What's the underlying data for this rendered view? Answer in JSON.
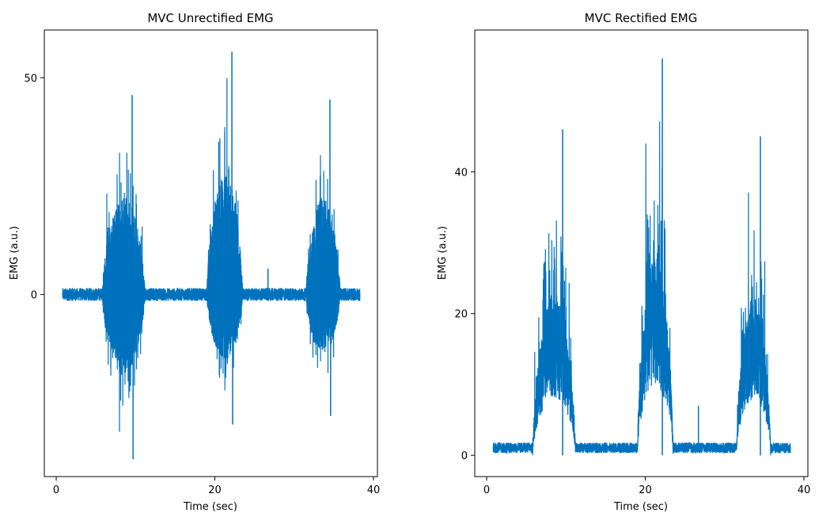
{
  "chart_data": [
    {
      "type": "line",
      "title": "MVC Unrectified EMG",
      "xlabel": "Time (sec)",
      "ylabel": "EMG (a.u.)",
      "xlim": [
        -1.5,
        40.5
      ],
      "ylim": [
        -42,
        61
      ],
      "xticks": [
        0,
        20,
        40
      ],
      "xtick_labels": [
        "0",
        "20",
        "40"
      ],
      "yticks": [
        0,
        50
      ],
      "ytick_labels": [
        "0",
        "50"
      ],
      "grid": false,
      "color": "#0072bd",
      "series": [
        {
          "name": "",
          "x_range": [
            0.8,
            38.3
          ],
          "baseline_amplitude": 1.5,
          "bursts": [
            {
              "start": 5.8,
              "end": 11.2,
              "max": 46,
              "min": -38
            },
            {
              "start": 19.0,
              "end": 23.5,
              "max": 56,
              "min": -30
            },
            {
              "start": 31.5,
              "end": 35.8,
              "max": 45,
              "min": -28
            }
          ],
          "spikes": [
            {
              "x": 26.7,
              "y": 6
            }
          ]
        }
      ]
    },
    {
      "type": "line",
      "title": "MVC Rectified EMG",
      "xlabel": "Time (sec)",
      "ylabel": "EMG (a.u.)",
      "xlim": [
        -1.5,
        40.5
      ],
      "ylim": [
        -3,
        60
      ],
      "xticks": [
        0,
        20,
        40
      ],
      "xtick_labels": [
        "0",
        "20",
        "40"
      ],
      "yticks": [
        0,
        20,
        40
      ],
      "ytick_labels": [
        "0",
        "20",
        "40"
      ],
      "grid": false,
      "color": "#0072bd",
      "series": [
        {
          "name": "",
          "x_range": [
            0.8,
            38.3
          ],
          "baseline_amplitude": 1.5,
          "bursts": [
            {
              "start": 5.8,
              "end": 11.2,
              "max": 46,
              "min": 0
            },
            {
              "start": 19.0,
              "end": 23.5,
              "max": 56,
              "min": 0
            },
            {
              "start": 31.5,
              "end": 35.8,
              "max": 45,
              "min": 0
            }
          ],
          "spikes": [
            {
              "x": 26.7,
              "y": 7
            }
          ]
        }
      ]
    }
  ]
}
